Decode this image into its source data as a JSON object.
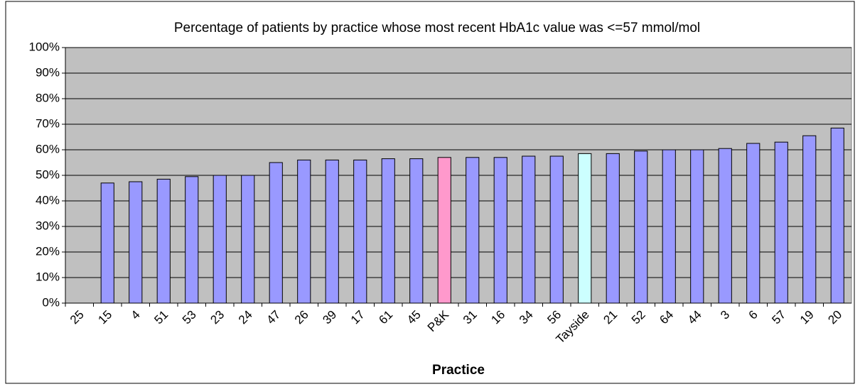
{
  "chart_data": {
    "type": "bar",
    "title": "Percentage of patients by practice whose most recent HbA1c value was <=57 mmol/mol",
    "x_label": "Practice",
    "categories": [
      "25",
      "15",
      "4",
      "51",
      "53",
      "23",
      "24",
      "47",
      "26",
      "39",
      "17",
      "61",
      "45",
      "P&K",
      "31",
      "16",
      "34",
      "56",
      "Tayside",
      "21",
      "52",
      "64",
      "44",
      "3",
      "6",
      "57",
      "19",
      "20"
    ],
    "values": [
      null,
      47,
      47.5,
      48.5,
      49.5,
      50,
      50,
      55,
      56,
      56,
      56,
      56.5,
      56.5,
      57,
      57,
      57,
      57.5,
      57.5,
      58.5,
      58.5,
      59.5,
      60,
      60,
      60.5,
      62.5,
      63,
      65.5,
      68.5
    ],
    "colors": [
      "#9999ff",
      "#9999ff",
      "#9999ff",
      "#9999ff",
      "#9999ff",
      "#9999ff",
      "#9999ff",
      "#9999ff",
      "#9999ff",
      "#9999ff",
      "#9999ff",
      "#9999ff",
      "#9999ff",
      "#ff99cc",
      "#9999ff",
      "#9999ff",
      "#9999ff",
      "#9999ff",
      "#ccffff",
      "#9999ff",
      "#9999ff",
      "#9999ff",
      "#9999ff",
      "#9999ff",
      "#9999ff",
      "#9999ff",
      "#9999ff",
      "#9999ff"
    ],
    "ylim": [
      0,
      100
    ],
    "yticks": [
      {
        "value": 0,
        "label": "0%"
      },
      {
        "value": 10,
        "label": "10%"
      },
      {
        "value": 20,
        "label": "20%"
      },
      {
        "value": 30,
        "label": "30%"
      },
      {
        "value": 40,
        "label": "40%"
      },
      {
        "value": 50,
        "label": "50%"
      },
      {
        "value": 60,
        "label": "60%"
      },
      {
        "value": 70,
        "label": "70%"
      },
      {
        "value": 80,
        "label": "80%"
      },
      {
        "value": 90,
        "label": "90%"
      },
      {
        "value": 100,
        "label": "100%"
      }
    ],
    "grid": true,
    "plot_background": "#c0c0c0"
  }
}
